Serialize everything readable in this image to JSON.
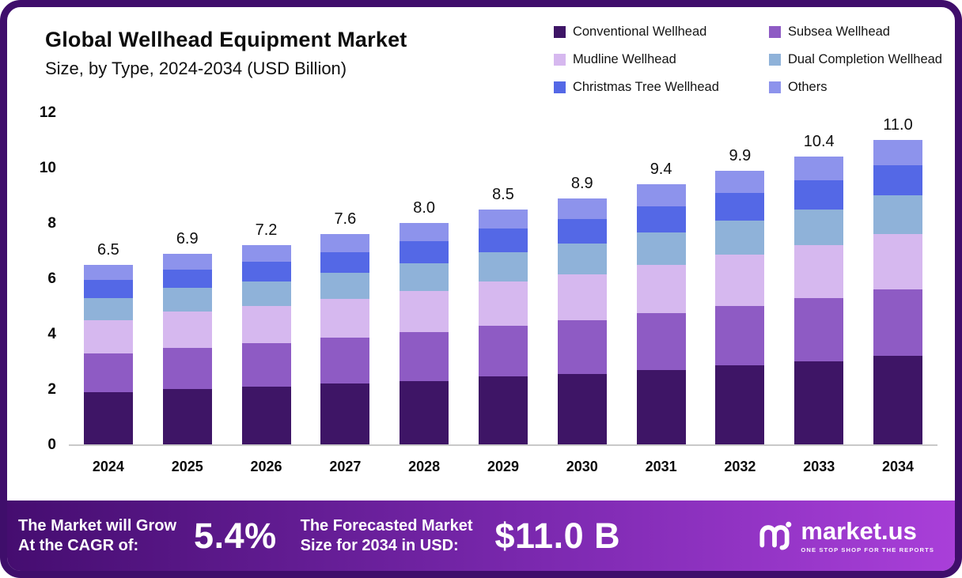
{
  "header": {
    "title": "Global Wellhead Equipment Market",
    "subtitle": "Size, by Type, 2024-2034 (USD Billion)"
  },
  "legend": [
    {
      "label": "Conventional Wellhead",
      "color": "#3e1566"
    },
    {
      "label": "Subsea Wellhead",
      "color": "#8e5bc4"
    },
    {
      "label": "Mudline Wellhead",
      "color": "#d6b8ef"
    },
    {
      "label": "Dual Completion Wellhead",
      "color": "#8fb2d9"
    },
    {
      "label": "Christmas Tree Wellhead",
      "color": "#5468e6"
    },
    {
      "label": "Others",
      "color": "#8d93ec"
    }
  ],
  "chart_data": {
    "type": "bar",
    "stacked": true,
    "title": "Global Wellhead Equipment Market Size, by Type, 2024-2034 (USD Billion)",
    "xlabel": "",
    "ylabel": "USD Billion",
    "ylim": [
      0,
      12
    ],
    "yticks": [
      0,
      2,
      4,
      6,
      8,
      10,
      12
    ],
    "grid": false,
    "legend_position": "top-right",
    "categories": [
      "2024",
      "2025",
      "2026",
      "2027",
      "2028",
      "2029",
      "2030",
      "2031",
      "2032",
      "2033",
      "2034"
    ],
    "totals": [
      6.5,
      6.9,
      7.2,
      7.6,
      8.0,
      8.5,
      8.9,
      9.4,
      9.9,
      10.4,
      11.0
    ],
    "total_labels": [
      "6.5",
      "6.9",
      "7.2",
      "7.6",
      "8.0",
      "8.5",
      "8.9",
      "9.4",
      "9.9",
      "10.4",
      "11.0"
    ],
    "series": [
      {
        "name": "Conventional Wellhead",
        "color": "#3e1566",
        "values": [
          1.9,
          2.0,
          2.1,
          2.2,
          2.3,
          2.45,
          2.55,
          2.7,
          2.85,
          3.0,
          3.2
        ]
      },
      {
        "name": "Subsea Wellhead",
        "color": "#8e5bc4",
        "values": [
          1.4,
          1.5,
          1.55,
          1.65,
          1.75,
          1.85,
          1.95,
          2.05,
          2.15,
          2.3,
          2.4
        ]
      },
      {
        "name": "Mudline Wellhead",
        "color": "#d6b8ef",
        "values": [
          1.2,
          1.3,
          1.35,
          1.4,
          1.5,
          1.6,
          1.65,
          1.75,
          1.85,
          1.9,
          2.0
        ]
      },
      {
        "name": "Dual Completion Wellhead",
        "color": "#8fb2d9",
        "values": [
          0.8,
          0.85,
          0.9,
          0.95,
          1.0,
          1.05,
          1.1,
          1.15,
          1.25,
          1.3,
          1.4
        ]
      },
      {
        "name": "Christmas Tree Wellhead",
        "color": "#5468e6",
        "values": [
          0.65,
          0.67,
          0.7,
          0.75,
          0.8,
          0.85,
          0.9,
          0.95,
          1.0,
          1.05,
          1.1
        ]
      },
      {
        "name": "Others",
        "color": "#8d93ec",
        "values": [
          0.55,
          0.58,
          0.6,
          0.65,
          0.65,
          0.7,
          0.75,
          0.8,
          0.8,
          0.85,
          0.9
        ]
      }
    ]
  },
  "footer": {
    "cagr_label_line1": "The Market will Grow",
    "cagr_label_line2": "At the CAGR of:",
    "cagr_value": "5.4%",
    "forecast_label_line1": "The Forecasted Market",
    "forecast_label_line2": "Size for 2034 in USD:",
    "forecast_value": "$11.0 B",
    "brand": {
      "name": "market.us",
      "tagline": "ONE STOP SHOP FOR THE REPORTS"
    }
  },
  "colors": {
    "frame": "#3f0e6b",
    "background": "#ffffff",
    "footer_gradient_start": "#450d70",
    "footer_gradient_end": "#a93fd9",
    "axis_line": "#c9c9c9"
  }
}
